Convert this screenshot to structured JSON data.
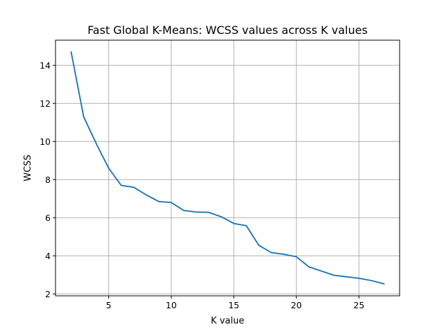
{
  "chart_data": {
    "type": "line",
    "title": "Fast Global K-Means: WCSS values across K values",
    "xlabel": "K value",
    "ylabel": "WCSS",
    "xlim": [
      0.75,
      28.25
    ],
    "ylim": [
      1.9,
      15.32
    ],
    "xticks": [
      5,
      10,
      15,
      20,
      25
    ],
    "yticks": [
      2,
      4,
      6,
      8,
      10,
      12,
      14
    ],
    "grid": true,
    "series": [
      {
        "color": "#1f77b4",
        "x": [
          2,
          3,
          4,
          5,
          6,
          7,
          8,
          9,
          10,
          11,
          12,
          13,
          14,
          15,
          16,
          17,
          18,
          19,
          20,
          21,
          22,
          23,
          24,
          25,
          26,
          27
        ],
        "y": [
          14.7,
          11.3,
          9.9,
          8.6,
          7.7,
          7.6,
          7.2,
          6.85,
          6.8,
          6.38,
          6.3,
          6.28,
          6.05,
          5.7,
          5.58,
          4.55,
          4.17,
          4.08,
          3.95,
          3.42,
          3.2,
          2.98,
          2.9,
          2.82,
          2.7,
          2.53
        ]
      }
    ]
  }
}
